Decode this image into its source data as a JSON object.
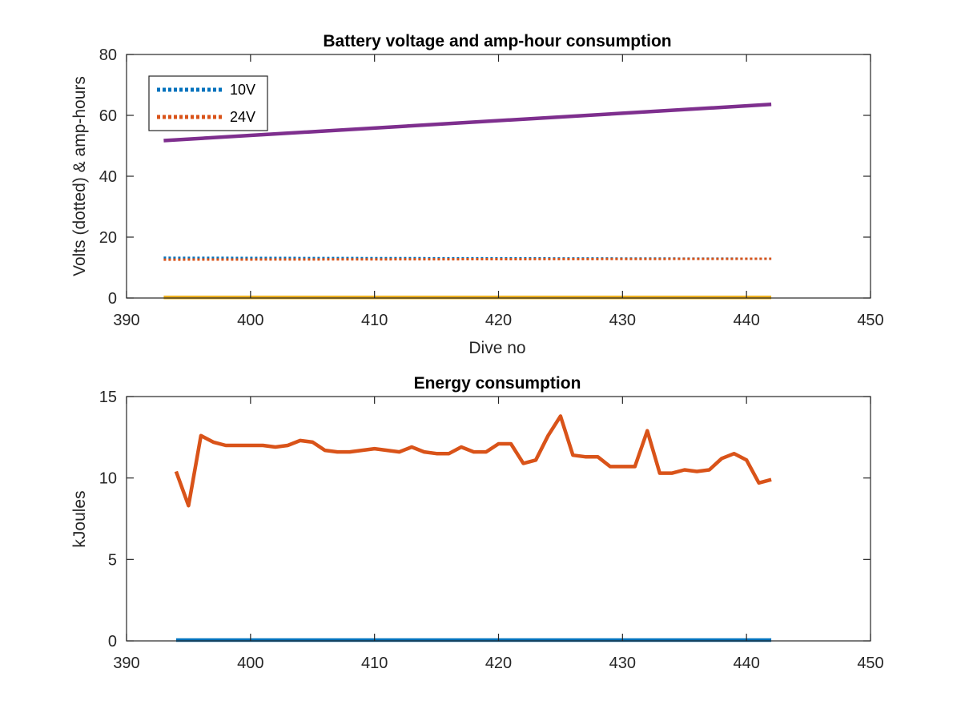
{
  "chart_data": [
    {
      "type": "line",
      "title": "Battery voltage and amp-hour consumption",
      "xlabel": "Dive no",
      "ylabel": "Volts (dotted) & amp-hours",
      "xlim": [
        390,
        450
      ],
      "ylim": [
        0,
        80
      ],
      "xticks": [
        "390",
        "400",
        "410",
        "420",
        "430",
        "440",
        "450"
      ],
      "yticks": [
        "0",
        "20",
        "40",
        "60",
        "80"
      ],
      "grid": false,
      "legend": {
        "position": "top-left",
        "entries": [
          "10V",
          "24V"
        ]
      },
      "series": [
        {
          "name": "10V",
          "color": "#0072BD",
          "style": "dotted",
          "x": [
            393,
            442
          ],
          "y": [
            13.2,
            12.9
          ]
        },
        {
          "name": "24V",
          "color": "#D95319",
          "style": "dotted",
          "x": [
            393,
            442
          ],
          "y": [
            12.6,
            12.9
          ]
        },
        {
          "color": "#7E2F8E",
          "style": "solid",
          "x": [
            393,
            442
          ],
          "y": [
            51.7,
            63.6
          ]
        },
        {
          "color": "#EDB120",
          "style": "solid",
          "x": [
            393,
            442
          ],
          "y": [
            0.2,
            0.2
          ]
        }
      ]
    },
    {
      "type": "line",
      "title": "Energy consumption",
      "xlabel": "",
      "ylabel": "kJoules",
      "xlim": [
        390,
        450
      ],
      "ylim": [
        0,
        15
      ],
      "xticks": [
        "390",
        "400",
        "410",
        "420",
        "430",
        "440",
        "450"
      ],
      "yticks": [
        "0",
        "5",
        "10",
        "15"
      ],
      "grid": false,
      "series": [
        {
          "color": "#D95319",
          "style": "solid",
          "x": [
            394,
            395,
            396,
            397,
            398,
            399,
            400,
            401,
            402,
            403,
            404,
            405,
            406,
            407,
            408,
            409,
            410,
            411,
            412,
            413,
            414,
            415,
            416,
            417,
            418,
            419,
            420,
            421,
            422,
            423,
            424,
            425,
            426,
            427,
            428,
            429,
            430,
            431,
            432,
            433,
            434,
            435,
            436,
            437,
            438,
            439,
            440,
            441,
            442
          ],
          "y": [
            10.4,
            8.3,
            12.6,
            12.2,
            12.0,
            12.0,
            12.0,
            12.0,
            11.9,
            12.0,
            12.3,
            12.2,
            11.7,
            11.6,
            11.6,
            11.7,
            11.8,
            11.7,
            11.6,
            11.9,
            11.6,
            11.5,
            11.5,
            11.9,
            11.6,
            11.6,
            12.1,
            12.1,
            10.9,
            11.1,
            12.6,
            13.8,
            11.4,
            11.3,
            11.3,
            10.7,
            10.7,
            10.7,
            12.9,
            10.3,
            10.3,
            10.5,
            10.4,
            10.5,
            11.2,
            11.5,
            11.1,
            9.7,
            9.9
          ]
        },
        {
          "color": "#0072BD",
          "style": "solid",
          "x": [
            394,
            442
          ],
          "y": [
            0.05,
            0.05
          ]
        }
      ]
    }
  ]
}
